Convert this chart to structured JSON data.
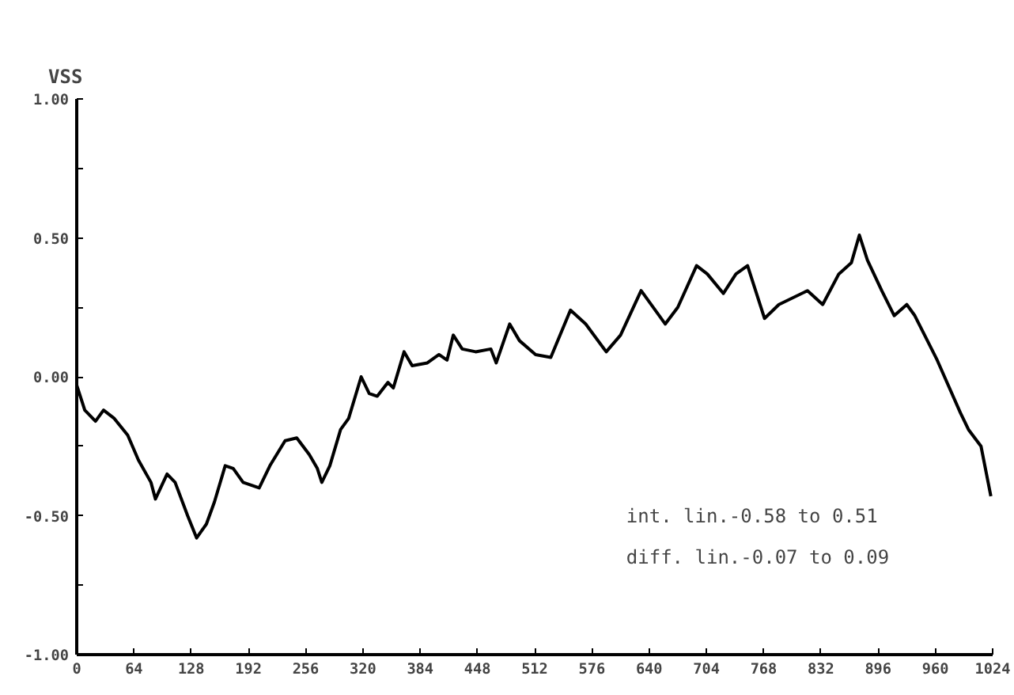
{
  "chart_data": {
    "type": "line",
    "ylabel": "VSS",
    "x": [
      0,
      9,
      21,
      30,
      42,
      57,
      69,
      83,
      88,
      101,
      110,
      124,
      134,
      145,
      154,
      166,
      175,
      186,
      204,
      216,
      233,
      246,
      260,
      269,
      274,
      283,
      295,
      304,
      318,
      327,
      336,
      348,
      354,
      366,
      375,
      392,
      405,
      414,
      421,
      431,
      446,
      463,
      469,
      484,
      495,
      513,
      530,
      552,
      569,
      592,
      608,
      631,
      658,
      672,
      693,
      705,
      723,
      737,
      750,
      769,
      785,
      817,
      834,
      852,
      866,
      875,
      884,
      900,
      914,
      928,
      937,
      962,
      988,
      997,
      1011,
      1022
    ],
    "values": [
      -0.03,
      -0.12,
      -0.16,
      -0.12,
      -0.15,
      -0.21,
      -0.3,
      -0.38,
      -0.44,
      -0.35,
      -0.38,
      -0.5,
      -0.58,
      -0.53,
      -0.45,
      -0.32,
      -0.33,
      -0.38,
      -0.4,
      -0.32,
      -0.23,
      -0.22,
      -0.28,
      -0.33,
      -0.38,
      -0.32,
      -0.19,
      -0.15,
      0.0,
      -0.06,
      -0.07,
      -0.02,
      -0.04,
      0.09,
      0.04,
      0.05,
      0.08,
      0.06,
      0.15,
      0.1,
      0.09,
      0.1,
      0.05,
      0.19,
      0.13,
      0.08,
      0.07,
      0.24,
      0.19,
      0.09,
      0.15,
      0.31,
      0.19,
      0.25,
      0.4,
      0.37,
      0.3,
      0.37,
      0.4,
      0.21,
      0.26,
      0.31,
      0.26,
      0.37,
      0.41,
      0.51,
      0.42,
      0.31,
      0.22,
      0.26,
      0.22,
      0.06,
      -0.13,
      -0.19,
      -0.25,
      -0.43
    ],
    "color": "#000000",
    "xlim": [
      0,
      1024
    ],
    "xticks": [
      0,
      64,
      128,
      192,
      256,
      320,
      384,
      448,
      512,
      576,
      640,
      704,
      768,
      832,
      896,
      960,
      1024
    ],
    "ylim": [
      -1.0,
      1.0
    ],
    "yticks": [
      {
        "value": -1.0,
        "label": "-1.00"
      },
      {
        "value": -0.75,
        "label": null
      },
      {
        "value": -0.5,
        "label": "-0.50"
      },
      {
        "value": -0.25,
        "label": null
      },
      {
        "value": 0.0,
        "label": "0.00"
      },
      {
        "value": 0.25,
        "label": null
      },
      {
        "value": 0.5,
        "label": "0.50"
      },
      {
        "value": 0.75,
        "label": null
      },
      {
        "value": 1.0,
        "label": "1.00"
      }
    ],
    "annotations": [
      "int. lin.-0.58 to 0.51",
      "diff. lin.-0.07 to 0.09"
    ],
    "grid": false
  }
}
